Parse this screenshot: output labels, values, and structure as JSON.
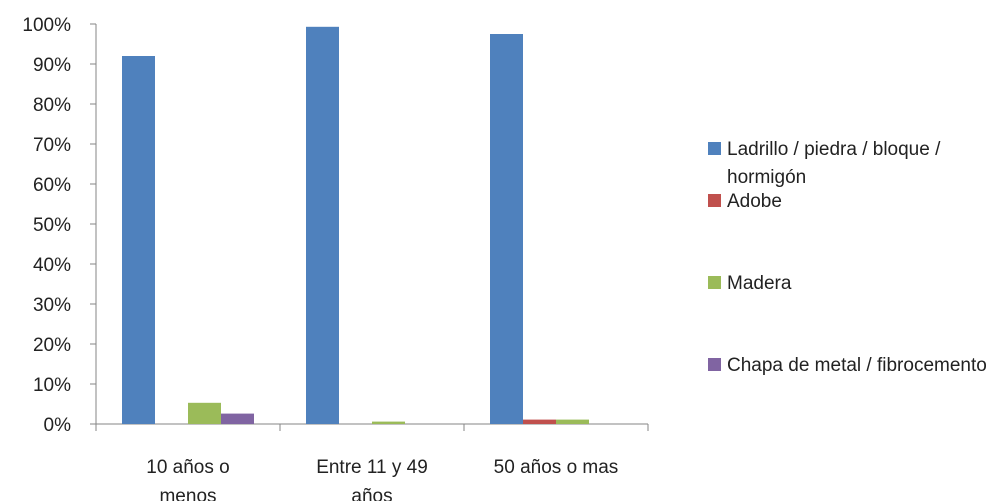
{
  "chart_data": {
    "type": "bar",
    "categories": [
      [
        "10 años o",
        "menos"
      ],
      [
        "Entre 11 y 49",
        "años"
      ],
      [
        "50 años o mas"
      ]
    ],
    "series": [
      {
        "name": "Ladrillo / piedra / bloque / hormigón",
        "color": "#4F81BD",
        "values": [
          92,
          99.3,
          97.5
        ]
      },
      {
        "name": "Adobe",
        "color": "#C0504D",
        "values": [
          0,
          0,
          1.1
        ]
      },
      {
        "name": "Madera",
        "color": "#9BBB59",
        "values": [
          5.3,
          0.6,
          1.1
        ]
      },
      {
        "name": "Chapa de metal / fibrocemento",
        "color": "#8064A2",
        "values": [
          2.6,
          0,
          0
        ]
      }
    ],
    "ylim": [
      0,
      100
    ],
    "yticks": [
      "0%",
      "10%",
      "20%",
      "30%",
      "40%",
      "50%",
      "60%",
      "70%",
      "80%",
      "90%",
      "100%"
    ],
    "grid": false,
    "legend_position": "right"
  }
}
